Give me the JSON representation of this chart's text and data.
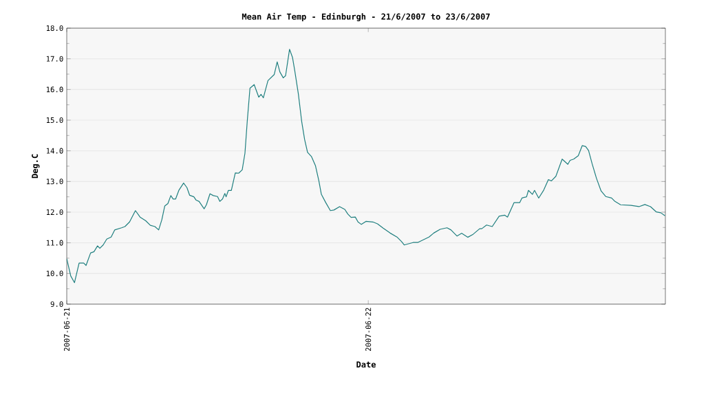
{
  "chart_data": {
    "type": "line",
    "title": "Mean Air Temp - Edinburgh - 21/6/2007 to 23/6/2007",
    "xlabel": "Date",
    "ylabel": "Deg.C",
    "x": [
      "2007-06-21T00:00",
      "2007-06-21T00:19",
      "2007-06-21T00:37",
      "2007-06-21T00:59",
      "2007-06-21T01:21",
      "2007-06-21T01:32",
      "2007-06-21T01:54",
      "2007-06-21T02:10",
      "2007-06-21T02:27",
      "2007-06-21T02:38",
      "2007-06-21T02:54",
      "2007-06-21T03:11",
      "2007-06-21T03:32",
      "2007-06-21T03:49",
      "2007-06-21T04:22",
      "2007-06-21T04:38",
      "2007-06-21T05:00",
      "2007-06-21T05:28",
      "2007-06-21T05:50",
      "2007-06-21T06:17",
      "2007-06-21T06:39",
      "2007-06-21T07:01",
      "2007-06-21T07:19",
      "2007-06-21T07:34",
      "2007-06-21T07:48",
      "2007-06-21T08:03",
      "2007-06-21T08:17",
      "2007-06-21T08:28",
      "2007-06-21T08:40",
      "2007-06-21T08:56",
      "2007-06-21T09:18",
      "2007-06-21T09:34",
      "2007-06-21T09:47",
      "2007-06-21T10:07",
      "2007-06-21T10:18",
      "2007-06-21T10:32",
      "2007-06-21T10:56",
      "2007-06-21T11:07",
      "2007-06-21T11:24",
      "2007-06-21T11:40",
      "2007-06-21T12:00",
      "2007-06-21T12:11",
      "2007-06-21T12:24",
      "2007-06-21T12:35",
      "2007-06-21T12:41",
      "2007-06-21T12:52",
      "2007-06-21T13:06",
      "2007-06-21T13:25",
      "2007-06-21T13:41",
      "2007-06-21T13:58",
      "2007-06-21T14:11",
      "2007-06-21T14:22",
      "2007-06-21T14:35",
      "2007-06-21T14:55",
      "2007-06-21T15:17",
      "2007-06-21T15:28",
      "2007-06-21T15:39",
      "2007-06-21T16:01",
      "2007-06-21T16:31",
      "2007-06-21T16:45",
      "2007-06-21T16:58",
      "2007-06-21T17:14",
      "2007-06-21T17:25",
      "2007-06-21T17:44",
      "2007-06-21T17:58",
      "2007-06-21T18:09",
      "2007-06-21T18:26",
      "2007-06-21T18:42",
      "2007-06-21T18:56",
      "2007-06-21T19:10",
      "2007-06-21T19:29",
      "2007-06-21T19:48",
      "2007-06-21T20:04",
      "2007-06-21T20:16",
      "2007-06-21T20:37",
      "2007-06-21T20:59",
      "2007-06-21T21:16",
      "2007-06-21T21:43",
      "2007-06-21T22:08",
      "2007-06-21T22:22",
      "2007-06-21T22:38",
      "2007-06-21T22:58",
      "2007-06-21T23:11",
      "2007-06-21T23:27",
      "2007-06-21T23:49",
      "2007-06-22T00:22",
      "2007-06-22T00:44",
      "2007-06-22T01:11",
      "2007-06-22T01:44",
      "2007-06-22T02:17",
      "2007-06-22T02:39",
      "2007-06-22T02:52",
      "2007-06-22T03:34",
      "2007-06-22T03:56",
      "2007-06-22T04:23",
      "2007-06-22T04:50",
      "2007-06-22T05:13",
      "2007-06-22T05:43",
      "2007-06-22T06:16",
      "2007-06-22T06:35",
      "2007-06-22T07:04",
      "2007-06-22T07:26",
      "2007-06-22T07:55",
      "2007-06-22T08:21",
      "2007-06-22T08:52",
      "2007-06-22T09:02",
      "2007-06-22T09:25",
      "2007-06-22T09:52",
      "2007-06-22T10:25",
      "2007-06-22T10:52",
      "2007-06-22T11:05",
      "2007-06-22T11:36",
      "2007-06-22T12:03",
      "2007-06-22T12:14",
      "2007-06-22T12:36",
      "2007-06-22T12:45",
      "2007-06-22T13:04",
      "2007-06-22T13:14",
      "2007-06-22T13:34",
      "2007-06-22T13:58",
      "2007-06-22T14:20",
      "2007-06-22T14:35",
      "2007-06-22T14:56",
      "2007-06-22T15:26",
      "2007-06-22T15:53",
      "2007-06-22T16:04",
      "2007-06-22T16:21",
      "2007-06-22T16:43",
      "2007-06-22T17:02",
      "2007-06-22T17:18",
      "2007-06-22T17:32",
      "2007-06-22T17:49",
      "2007-06-22T18:10",
      "2007-06-22T18:32",
      "2007-06-22T18:54",
      "2007-06-22T19:22",
      "2007-06-22T19:38",
      "2007-06-22T20:05",
      "2007-06-22T20:55",
      "2007-06-22T21:33",
      "2007-06-22T22:01",
      "2007-06-22T22:28",
      "2007-06-22T22:55",
      "2007-06-22T23:17",
      "2007-06-22T23:37"
    ],
    "series": [
      {
        "color": "#1f7f7f",
        "values": [
          10.48,
          9.92,
          9.7,
          10.34,
          10.34,
          10.26,
          10.67,
          10.71,
          10.9,
          10.82,
          10.93,
          11.12,
          11.19,
          11.42,
          11.49,
          11.53,
          11.68,
          12.05,
          11.84,
          11.72,
          11.57,
          11.53,
          11.42,
          11.75,
          12.2,
          12.28,
          12.54,
          12.43,
          12.43,
          12.72,
          12.95,
          12.8,
          12.55,
          12.5,
          12.39,
          12.35,
          12.11,
          12.24,
          12.6,
          12.54,
          12.51,
          12.35,
          12.43,
          12.61,
          12.5,
          12.71,
          12.71,
          13.28,
          13.27,
          13.38,
          13.92,
          14.96,
          16.04,
          16.16,
          15.75,
          15.84,
          15.73,
          16.29,
          16.49,
          16.9,
          16.57,
          16.38,
          16.45,
          17.31,
          17.05,
          16.61,
          15.86,
          14.96,
          14.37,
          13.95,
          13.81,
          13.51,
          13.02,
          12.58,
          12.31,
          12.05,
          12.07,
          12.18,
          12.09,
          11.94,
          11.83,
          11.84,
          11.68,
          11.6,
          11.7,
          11.68,
          11.62,
          11.48,
          11.32,
          11.19,
          11.04,
          10.93,
          11.01,
          11.01,
          11.1,
          11.19,
          11.32,
          11.44,
          11.49,
          11.42,
          11.22,
          11.31,
          11.18,
          11.28,
          11.46,
          11.46,
          11.58,
          11.53,
          11.87,
          11.9,
          11.84,
          12.31,
          12.31,
          12.46,
          12.5,
          12.71,
          12.58,
          12.71,
          12.46,
          12.72,
          13.06,
          13.02,
          13.17,
          13.73,
          13.56,
          13.69,
          13.73,
          13.84,
          14.17,
          14.14,
          14.01,
          13.58,
          13.1,
          12.69,
          12.51,
          12.46,
          12.35,
          12.24,
          12.22,
          12.18,
          12.25,
          12.18,
          12.01,
          11.98,
          11.88
        ]
      }
    ],
    "xlim": [
      "2007-06-21T00:00",
      "2007-06-22T23:39"
    ],
    "xticks": [
      "2007-06-21",
      "2007-06-22"
    ],
    "ylim": [
      9,
      18
    ],
    "yticks": [
      {
        "value": 9,
        "label": "9.0"
      },
      {
        "value": 10,
        "label": "10.0"
      },
      {
        "value": 11,
        "label": "11.0"
      },
      {
        "value": 12,
        "label": "12.0"
      },
      {
        "value": 13,
        "label": "13.0"
      },
      {
        "value": 14,
        "label": "14.0"
      },
      {
        "value": 15,
        "label": "15.0"
      },
      {
        "value": 16,
        "label": "16.0"
      },
      {
        "value": 17,
        "label": "17.0"
      },
      {
        "value": 18,
        "label": "18.0"
      }
    ],
    "grid": "y",
    "marker": "none",
    "line_style": "solid"
  }
}
